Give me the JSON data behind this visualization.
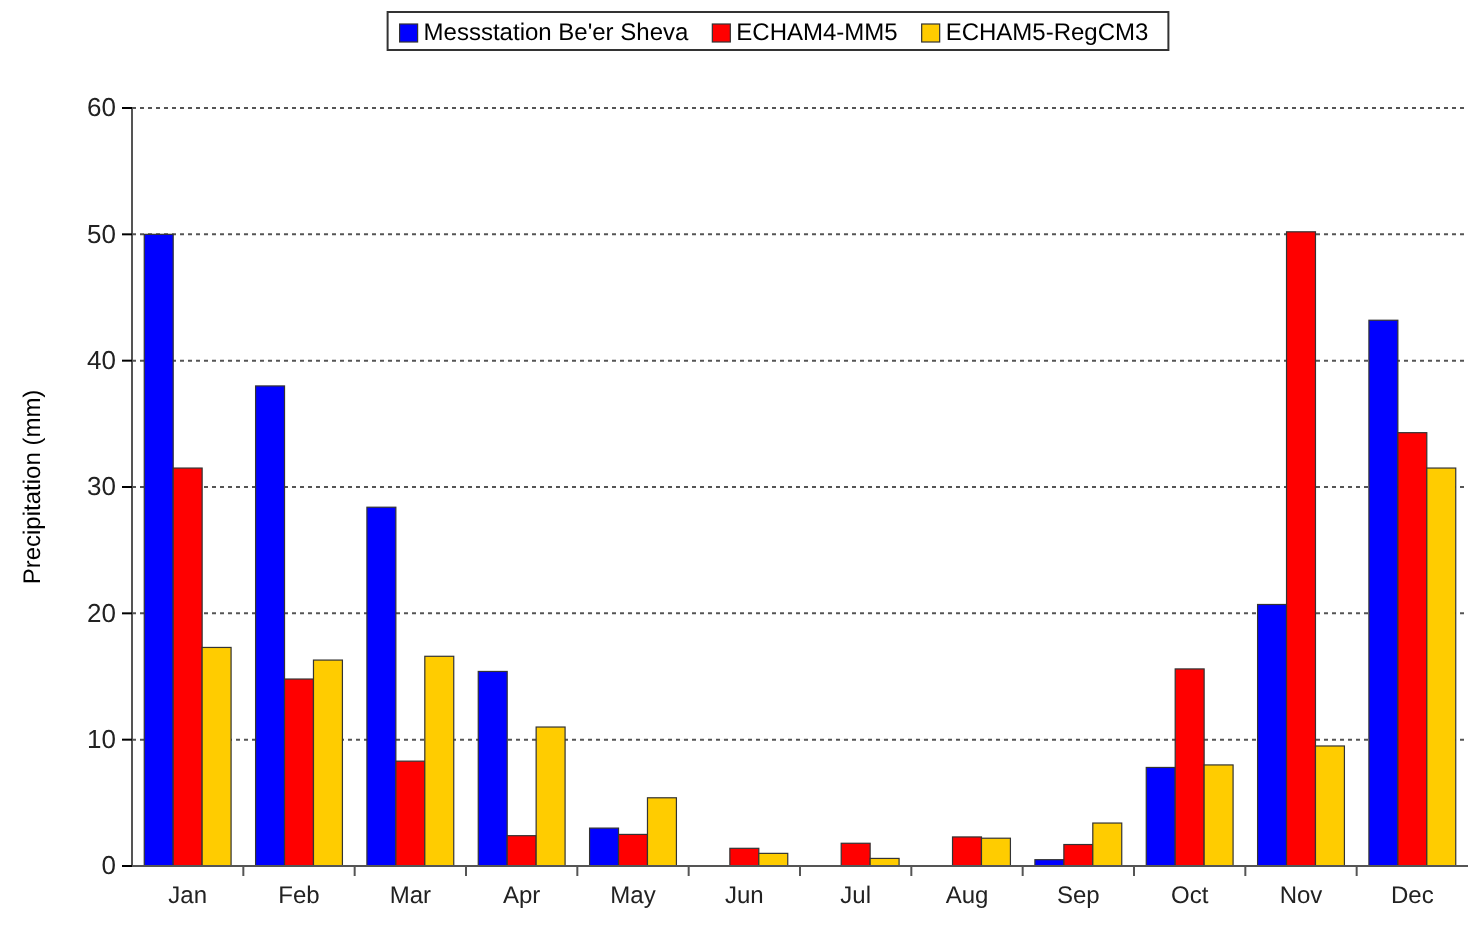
{
  "chart_data": {
    "type": "bar",
    "ylabel": "Precipitation (mm)",
    "categories": [
      "Jan",
      "Feb",
      "Mar",
      "Apr",
      "May",
      "Jun",
      "Jul",
      "Aug",
      "Sep",
      "Oct",
      "Nov",
      "Dec"
    ],
    "series": [
      {
        "name": "Messstation Be'er Sheva",
        "color": "#0000ff",
        "values": [
          50,
          38,
          28.4,
          15.4,
          3,
          0,
          0,
          0,
          0.5,
          7.8,
          20.7,
          43.2
        ]
      },
      {
        "name": "ECHAM4-MM5",
        "color": "#ff0000",
        "values": [
          31.5,
          14.8,
          8.3,
          2.4,
          2.5,
          1.4,
          1.8,
          2.3,
          1.7,
          15.6,
          50.2,
          34.3
        ]
      },
      {
        "name": "ECHAM5-RegCM3",
        "color": "#ffcc00",
        "values": [
          17.3,
          16.3,
          16.6,
          11,
          5.4,
          1,
          0.6,
          2.2,
          3.4,
          8,
          9.5,
          31.5
        ]
      }
    ],
    "ylim": [
      0,
      60
    ],
    "yticks": [
      0,
      10,
      20,
      30,
      40,
      50,
      60
    ],
    "grid": "y",
    "legend": "top"
  }
}
